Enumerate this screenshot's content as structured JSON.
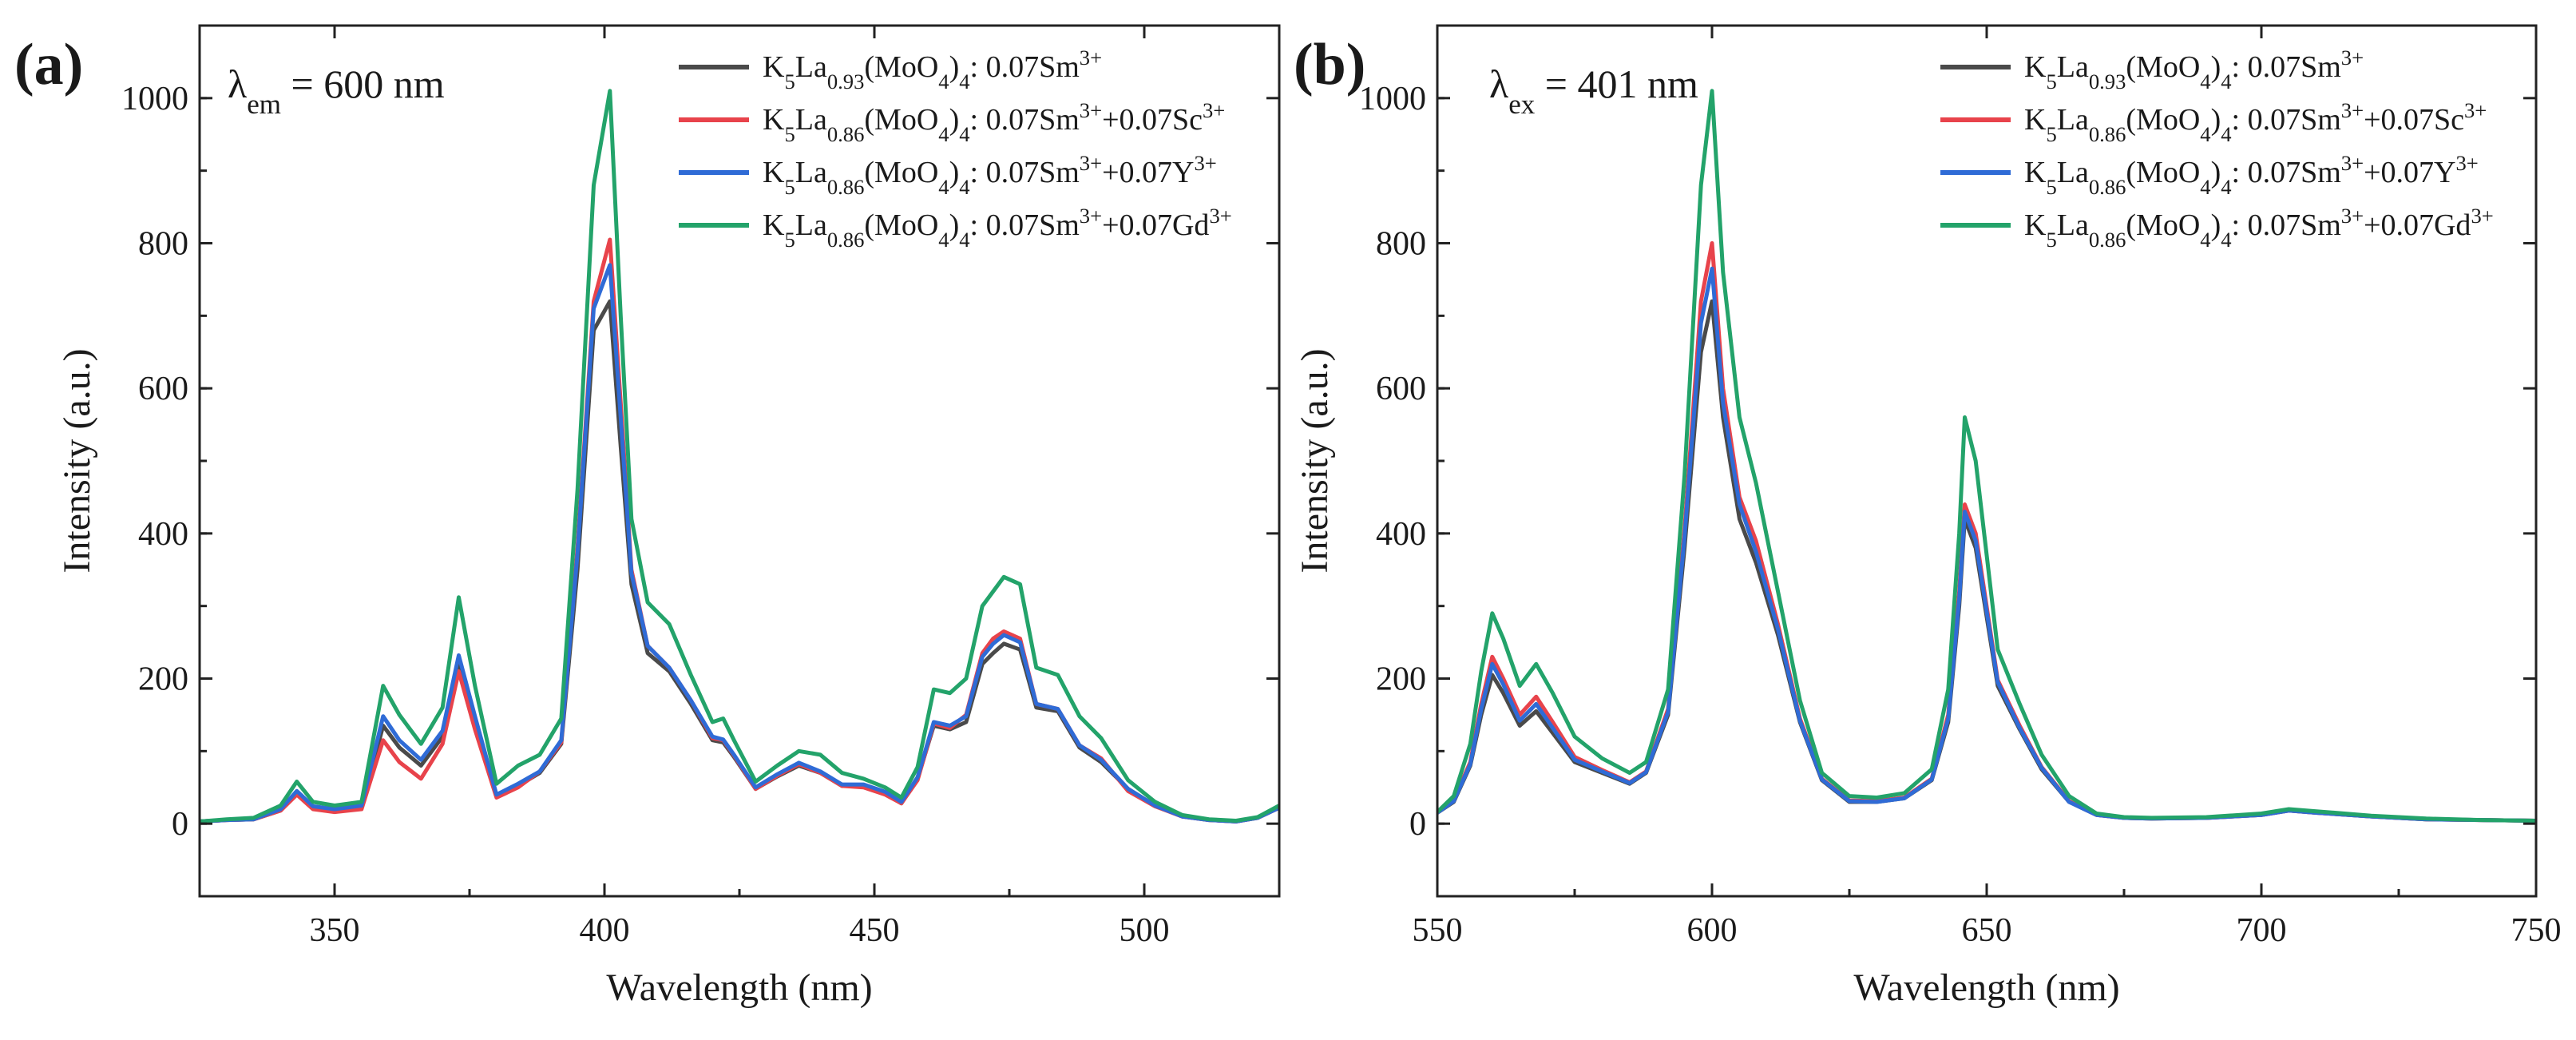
{
  "chart_data": [
    {
      "panel_label": "(a)",
      "type": "line",
      "title": "",
      "annotation": {
        "lambda": "λ",
        "sub": "em",
        "value": "= 600 nm"
      },
      "xlabel": "Wavelength (nm)",
      "ylabel": "Intensity (a.u.)",
      "xlim": [
        325,
        525
      ],
      "ylim": [
        -100,
        1100
      ],
      "xticks": [
        350,
        400,
        450,
        500
      ],
      "yticks": [
        0,
        200,
        400,
        600,
        800,
        1000
      ],
      "legend_position": "top-right",
      "x": [
        325,
        330,
        335,
        340,
        343,
        346,
        350,
        355,
        359,
        362,
        366,
        370,
        373,
        376,
        380,
        384,
        388,
        392,
        395,
        398,
        401,
        403,
        405,
        408,
        412,
        416,
        420,
        422,
        424,
        428,
        432,
        436,
        440,
        444,
        448,
        452,
        455,
        458,
        461,
        464,
        467,
        470,
        472,
        474,
        477,
        480,
        484,
        488,
        492,
        497,
        502,
        507,
        512,
        517,
        521,
        525
      ],
      "series": [
        {
          "name": "K5La0.93(MoO4)4: 0.07Sm3+",
          "color": "#4a4a4a",
          "legend": {
            "A": "K",
            "As": "5",
            "B": "La",
            "Bs": "0.93",
            "C": "(MoO",
            "Cs": "4",
            "D": ")",
            "Ds": "4",
            "E": ": 0.07Sm",
            "Ep": "3+",
            "F": "",
            "Fp": ""
          },
          "values": [
            3,
            5,
            6,
            18,
            42,
            22,
            18,
            22,
            135,
            105,
            80,
            120,
            225,
            140,
            38,
            52,
            70,
            110,
            350,
            680,
            720,
            520,
            330,
            235,
            210,
            165,
            115,
            112,
            92,
            48,
            65,
            80,
            70,
            52,
            52,
            42,
            28,
            62,
            135,
            130,
            140,
            220,
            235,
            248,
            240,
            160,
            155,
            105,
            85,
            48,
            25,
            10,
            5,
            3,
            8,
            22
          ]
        },
        {
          "name": "K5La0.86(MoO4)4: 0.07Sm3+ +0.07Sc3+",
          "color": "#e8434b",
          "legend": {
            "A": "K",
            "As": "5",
            "B": "La",
            "Bs": "0.86",
            "C": "(MoO",
            "Cs": "4",
            "D": ")",
            "Ds": "4",
            "E": ": 0.07Sm",
            "Ep": "3+",
            "F": "+0.07Sc",
            "Fp": "3+"
          },
          "values": [
            3,
            5,
            6,
            18,
            40,
            20,
            16,
            20,
            115,
            85,
            62,
            110,
            210,
            130,
            36,
            50,
            72,
            112,
            380,
            720,
            805,
            580,
            350,
            245,
            215,
            170,
            118,
            115,
            94,
            48,
            66,
            82,
            70,
            52,
            50,
            40,
            28,
            60,
            138,
            132,
            150,
            235,
            255,
            265,
            255,
            165,
            158,
            108,
            90,
            45,
            24,
            10,
            5,
            3,
            8,
            22
          ]
        },
        {
          "name": "K5La0.86(MoO4)4: 0.07Sm3+ +0.07Y3+",
          "color": "#2f6bd6",
          "legend": {
            "A": "K",
            "As": "5",
            "B": "La",
            "Bs": "0.86",
            "C": "(MoO",
            "Cs": "4",
            "D": ")",
            "Ds": "4",
            "E": ": 0.07Sm",
            "Ep": "3+",
            "F": "+0.07Y",
            "Fp": "3+"
          },
          "values": [
            3,
            5,
            6,
            20,
            45,
            24,
            20,
            25,
            148,
            115,
            88,
            128,
            232,
            148,
            40,
            55,
            72,
            115,
            372,
            710,
            770,
            560,
            345,
            245,
            215,
            170,
            120,
            116,
            95,
            50,
            68,
            84,
            72,
            54,
            54,
            44,
            30,
            64,
            140,
            135,
            148,
            230,
            248,
            260,
            250,
            165,
            158,
            108,
            88,
            48,
            25,
            10,
            5,
            3,
            8,
            22
          ]
        },
        {
          "name": "K5La0.86(MoO4)4: 0.07Sm3+ +0.07Gd3+",
          "color": "#23a36a",
          "legend": {
            "A": "K",
            "As": "5",
            "B": "La",
            "Bs": "0.86",
            "C": "(MoO",
            "Cs": "4",
            "D": ")",
            "Ds": "4",
            "E": ": 0.07Sm",
            "Ep": "3+",
            "F": "+0.07Gd",
            "Fp": "3+"
          },
          "values": [
            3,
            6,
            8,
            25,
            58,
            30,
            25,
            30,
            190,
            150,
            110,
            160,
            312,
            190,
            55,
            80,
            95,
            145,
            460,
            880,
            1010,
            700,
            420,
            305,
            275,
            205,
            140,
            145,
            115,
            58,
            80,
            100,
            95,
            70,
            62,
            50,
            36,
            78,
            185,
            180,
            200,
            300,
            320,
            340,
            330,
            215,
            205,
            148,
            118,
            60,
            30,
            12,
            6,
            4,
            9,
            25
          ]
        }
      ]
    },
    {
      "panel_label": "(b)",
      "type": "line",
      "title": "",
      "annotation": {
        "lambda": "λ",
        "sub": "ex",
        "value": "= 401 nm"
      },
      "xlabel": "Wavelength (nm)",
      "ylabel": "Intensity (a.u.)",
      "xlim": [
        550,
        750
      ],
      "ylim": [
        -100,
        1100
      ],
      "xticks": [
        550,
        600,
        650,
        700,
        750
      ],
      "yticks": [
        0,
        200,
        400,
        600,
        800,
        1000
      ],
      "legend_position": "top-right",
      "x": [
        550,
        553,
        556,
        558,
        560,
        562,
        565,
        568,
        571,
        575,
        580,
        585,
        588,
        592,
        595,
        598,
        600,
        602,
        605,
        608,
        612,
        616,
        620,
        625,
        630,
        635,
        640,
        643,
        645,
        646,
        648,
        652,
        656,
        660,
        665,
        670,
        675,
        680,
        690,
        700,
        705,
        710,
        720,
        730,
        740,
        750
      ],
      "series": [
        {
          "name": "K5La0.93(MoO4)4: 0.07Sm3+",
          "color": "#4a4a4a",
          "legend": {
            "A": "K",
            "As": "5",
            "B": "La",
            "Bs": "0.93",
            "C": "(MoO",
            "Cs": "4",
            "D": ")",
            "Ds": "4",
            "E": ": 0.07Sm",
            "Ep": "3+",
            "F": "",
            "Fp": ""
          },
          "values": [
            15,
            30,
            80,
            150,
            205,
            180,
            135,
            155,
            125,
            85,
            70,
            55,
            70,
            150,
            380,
            650,
            720,
            560,
            420,
            360,
            260,
            140,
            60,
            30,
            30,
            35,
            60,
            140,
            300,
            420,
            380,
            190,
            130,
            75,
            30,
            12,
            8,
            7,
            8,
            12,
            18,
            15,
            10,
            6,
            5,
            4
          ]
        },
        {
          "name": "K5La0.86(MoO4)4: 0.07Sm3+ +0.07Sc3+",
          "color": "#e8434b",
          "legend": {
            "A": "K",
            "As": "5",
            "B": "La",
            "Bs": "0.86",
            "C": "(MoO",
            "Cs": "4",
            "D": ")",
            "Ds": "4",
            "E": ": 0.07Sm",
            "Ep": "3+",
            "F": "+0.07Sc",
            "Fp": "3+"
          },
          "values": [
            15,
            32,
            85,
            165,
            230,
            200,
            150,
            175,
            140,
            92,
            74,
            57,
            72,
            158,
            405,
            720,
            800,
            600,
            450,
            390,
            275,
            145,
            62,
            32,
            31,
            36,
            62,
            150,
            320,
            440,
            400,
            198,
            135,
            78,
            31,
            12,
            8,
            7,
            8,
            12,
            18,
            15,
            10,
            6,
            5,
            4
          ]
        },
        {
          "name": "K5La0.86(MoO4)4: 0.07Sm3+ +0.07Y3+",
          "color": "#2f6bd6",
          "legend": {
            "A": "K",
            "As": "5",
            "B": "La",
            "Bs": "0.86",
            "C": "(MoO",
            "Cs": "4",
            "D": ")",
            "Ds": "4",
            "E": ": 0.07Sm",
            "Ep": "3+",
            "F": "+0.07Y",
            "Fp": "3+"
          },
          "values": [
            15,
            31,
            82,
            158,
            220,
            192,
            142,
            165,
            132,
            88,
            72,
            56,
            71,
            154,
            395,
            690,
            765,
            580,
            440,
            375,
            268,
            142,
            61,
            31,
            30,
            35,
            61,
            145,
            310,
            430,
            390,
            195,
            132,
            77,
            30,
            12,
            8,
            7,
            8,
            12,
            18,
            15,
            10,
            6,
            5,
            4
          ]
        },
        {
          "name": "K5La0.86(MoO4)4: 0.07Sm3+ +0.07Gd3+",
          "color": "#23a36a",
          "legend": {
            "A": "K",
            "As": "5",
            "B": "La",
            "Bs": "0.86",
            "C": "(MoO",
            "Cs": "4",
            "D": ")",
            "Ds": "4",
            "E": ": 0.07Sm",
            "Ep": "3+",
            "F": "+0.07Gd",
            "Fp": "3+"
          },
          "values": [
            16,
            38,
            110,
            210,
            290,
            255,
            190,
            220,
            180,
            120,
            90,
            70,
            85,
            185,
            480,
            880,
            1010,
            760,
            560,
            470,
            320,
            170,
            70,
            38,
            36,
            42,
            75,
            185,
            400,
            560,
            500,
            240,
            165,
            95,
            38,
            14,
            9,
            8,
            9,
            14,
            20,
            17,
            11,
            7,
            5,
            4
          ]
        }
      ]
    }
  ]
}
